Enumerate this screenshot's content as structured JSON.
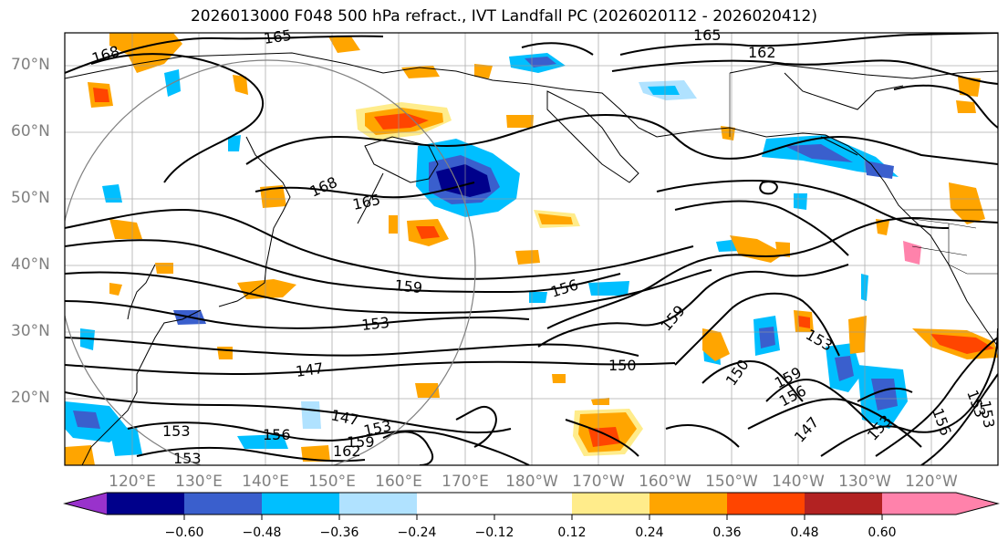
{
  "title": "2026013000 F048 500 hPa refract., IVT Landfall PC (2026020112 - 2026020412)",
  "lat_labels": [
    "70°N",
    "60°N",
    "50°N",
    "40°N",
    "30°N",
    "20°N"
  ],
  "lon_labels": [
    "120°E",
    "130°E",
    "140°E",
    "150°E",
    "160°E",
    "170°E",
    "180°W",
    "170°W",
    "160°W",
    "150°W",
    "140°W",
    "130°W",
    "120°W"
  ],
  "contour_labels": [
    "168",
    "165",
    "165",
    "162",
    "168",
    "165",
    "159",
    "156",
    "153",
    "159",
    "147",
    "150",
    "150",
    "153",
    "159",
    "156",
    "147",
    "153",
    "153",
    "156",
    "147",
    "153",
    "153",
    "156",
    "159",
    "153",
    "162",
    "153"
  ],
  "colorbar": {
    "tick_labels": [
      "−0.60",
      "−0.48",
      "−0.36",
      "−0.24",
      "−0.12",
      "0.12",
      "0.24",
      "0.36",
      "0.48",
      "0.60"
    ],
    "colors": [
      "#9932cc",
      "#00008b",
      "#3a5fcd",
      "#00bfff",
      "#b0e2ff",
      "#ffffff",
      "#ffec8b",
      "#ffa500",
      "#ff4500",
      "#b22222",
      "#ff82ab"
    ]
  }
}
